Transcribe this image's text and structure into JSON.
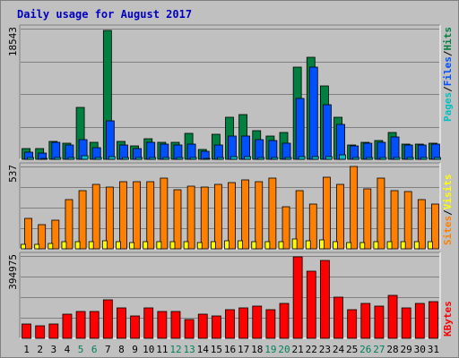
{
  "chart_data": [
    {
      "panel": "top",
      "type": "bar",
      "title": "Daily usage for August 2017",
      "categories": [
        "1",
        "2",
        "3",
        "4",
        "5",
        "6",
        "7",
        "8",
        "9",
        "10",
        "11",
        "12",
        "13",
        "14",
        "15",
        "16",
        "17",
        "18",
        "19",
        "20",
        "21",
        "22",
        "23",
        "24",
        "25",
        "26",
        "27",
        "28",
        "29",
        "30",
        "31"
      ],
      "weekend_categories": [
        "5",
        "6",
        "12",
        "13",
        "19",
        "20",
        "26",
        "27"
      ],
      "y_max_label": "18543",
      "ylim": [
        0,
        18543
      ],
      "series": [
        {
          "name": "Hits",
          "color": "#008040",
          "values": [
            1500,
            1500,
            2600,
            2300,
            7500,
            2500,
            18543,
            2600,
            1900,
            2900,
            2400,
            2500,
            3700,
            1400,
            3600,
            6000,
            6400,
            4100,
            3400,
            3900,
            13200,
            14700,
            10600,
            6000,
            2100,
            2400,
            2700,
            3800,
            2200,
            2200,
            2300
          ]
        },
        {
          "name": "Files",
          "color": "#0050ff",
          "values": [
            1000,
            900,
            2500,
            2100,
            2800,
            1700,
            5500,
            2100,
            1600,
            2400,
            2200,
            2100,
            2200,
            1100,
            2000,
            3300,
            3400,
            2800,
            2700,
            2300,
            8800,
            13300,
            7800,
            5000,
            1900,
            2300,
            2500,
            3200,
            2100,
            2100,
            2200
          ]
        },
        {
          "name": "Pages",
          "color": "#00c0c0",
          "values": [
            200,
            150,
            250,
            200,
            500,
            250,
            400,
            250,
            200,
            250,
            200,
            250,
            300,
            150,
            300,
            350,
            350,
            300,
            250,
            300,
            450,
            450,
            400,
            600,
            200,
            200,
            250,
            300,
            200,
            200,
            200
          ]
        }
      ]
    },
    {
      "panel": "middle",
      "type": "bar",
      "categories": [
        "1",
        "2",
        "3",
        "4",
        "5",
        "6",
        "7",
        "8",
        "9",
        "10",
        "11",
        "12",
        "13",
        "14",
        "15",
        "16",
        "17",
        "18",
        "19",
        "20",
        "21",
        "22",
        "23",
        "24",
        "25",
        "26",
        "27",
        "28",
        "29",
        "30",
        "31"
      ],
      "y_max_label": "537",
      "ylim": [
        0,
        537
      ],
      "series": [
        {
          "name": "Visits",
          "color": "#ffff00",
          "values": [
            30,
            28,
            35,
            45,
            45,
            48,
            55,
            45,
            40,
            50,
            45,
            45,
            50,
            40,
            45,
            55,
            55,
            50,
            45,
            50,
            65,
            55,
            60,
            50,
            40,
            40,
            45,
            50,
            45,
            45,
            45
          ]
        },
        {
          "name": "Sites",
          "color": "#ff8000",
          "values": [
            200,
            160,
            190,
            330,
            390,
            430,
            410,
            445,
            450,
            445,
            470,
            395,
            420,
            410,
            430,
            440,
            460,
            445,
            470,
            280,
            390,
            300,
            480,
            430,
            550,
            400,
            470,
            390,
            380,
            330,
            300
          ]
        }
      ]
    },
    {
      "panel": "bottom",
      "type": "bar",
      "categories": [
        "1",
        "2",
        "3",
        "4",
        "5",
        "6",
        "7",
        "8",
        "9",
        "10",
        "11",
        "12",
        "13",
        "14",
        "15",
        "16",
        "17",
        "18",
        "19",
        "20",
        "21",
        "22",
        "23",
        "24",
        "25",
        "26",
        "27",
        "28",
        "29",
        "30",
        "31"
      ],
      "y_max_label": "394975",
      "ylim": [
        0,
        394975
      ],
      "series": [
        {
          "name": "KBytes",
          "color": "#ff0000",
          "values": [
            70000,
            60000,
            70000,
            120000,
            130000,
            130000,
            190000,
            150000,
            110000,
            150000,
            130000,
            130000,
            90000,
            120000,
            110000,
            140000,
            150000,
            160000,
            140000,
            170000,
            400000,
            330000,
            380000,
            200000,
            140000,
            170000,
            160000,
            210000,
            150000,
            170000,
            180000
          ]
        }
      ]
    }
  ],
  "legend": {
    "top": [
      "Pages",
      "/",
      "Files",
      "/",
      "Hits"
    ],
    "middle": [
      "Sites",
      "/",
      "Visits"
    ],
    "bottom": [
      "KBytes"
    ]
  },
  "colors": {
    "background": "#c0c0c0",
    "title": "#0000c0",
    "axis_label": "#000000",
    "weekend_label": "#00805c",
    "gridline": "#808080",
    "bar_border": "#000000",
    "legend_separator": "#000000"
  }
}
